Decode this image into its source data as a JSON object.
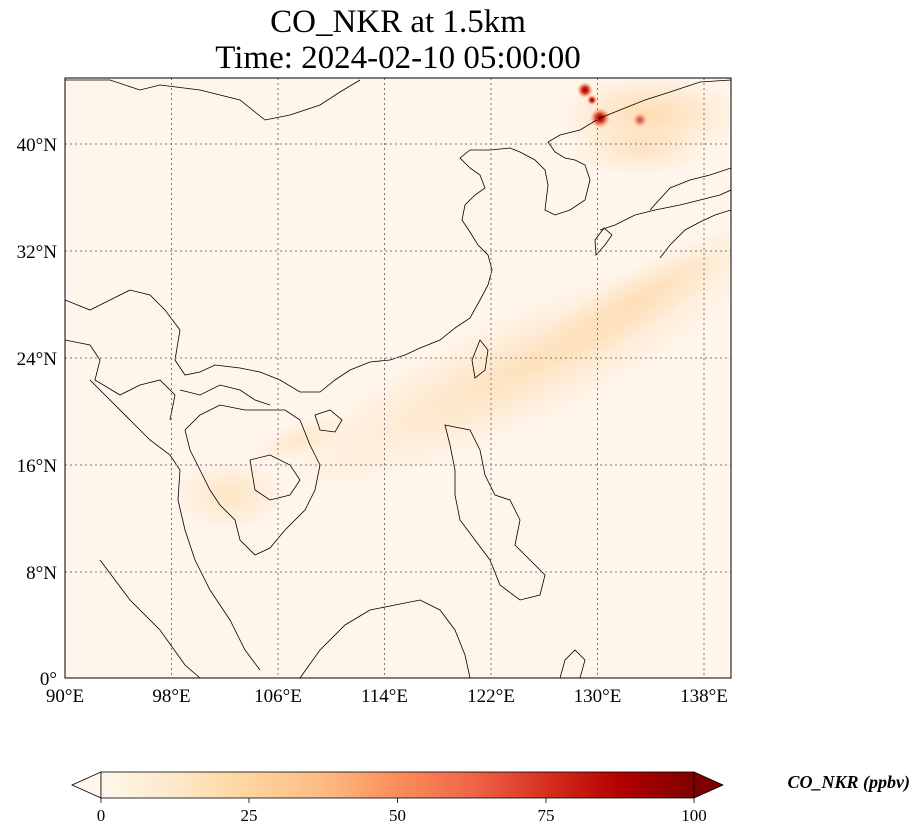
{
  "title_line1": "CO_NKR at 1.5km",
  "title_line2": "Time: 2024-02-10 05:00:00",
  "map": {
    "lon_range": [
      90,
      140
    ],
    "lat_range": [
      0,
      40.0
    ],
    "x_ticks": [
      "90°E",
      "98°E",
      "106°E",
      "114°E",
      "122°E",
      "130°E",
      "138°E"
    ],
    "y_ticks": [
      "40°N",
      "32°N",
      "24°N",
      "16°N",
      "8°N",
      "0°"
    ],
    "gridlines": "dotted",
    "background_color": "#fff5eb"
  },
  "colorbar": {
    "label": "CO_NKR (ppbv)",
    "ticks": [
      "0",
      "25",
      "50",
      "75",
      "100"
    ],
    "colormap": "OrRd",
    "colors": [
      "#fff7ec",
      "#fee8c8",
      "#fdd49e",
      "#fdbb84",
      "#fc8d59",
      "#ef6548",
      "#d7301f",
      "#b30000",
      "#7f0000"
    ],
    "extend": "both"
  }
}
